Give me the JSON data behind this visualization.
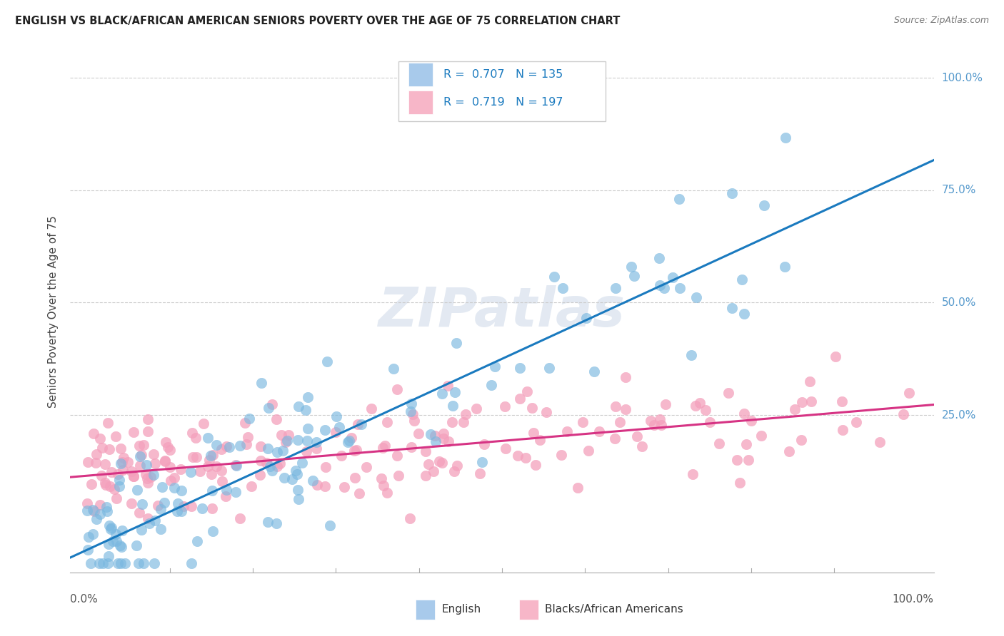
{
  "title": "ENGLISH VS BLACK/AFRICAN AMERICAN SENIORS POVERTY OVER THE AGE OF 75 CORRELATION CHART",
  "source": "Source: ZipAtlas.com",
  "ylabel": "Seniors Poverty Over the Age of 75",
  "english_R": 0.707,
  "english_N": 135,
  "black_R": 0.719,
  "black_N": 197,
  "english_color": "#a8caeb",
  "black_color": "#f7b6c8",
  "english_line_color": "#1a7abf",
  "black_line_color": "#d63384",
  "english_scatter_color": "#7ab8e0",
  "black_scatter_color": "#f4a0bc",
  "watermark_color": "#ccd8e8",
  "ytick_color": "#5599cc",
  "ytick_right_color": "#5599cc",
  "grid_color": "#cccccc",
  "title_color": "#222222",
  "source_color": "#777777",
  "legend_box_edge": "#cccccc",
  "legend_text_color": "#1a7abf",
  "axis_color": "#aaaaaa",
  "slope_eng": 0.85,
  "intercept_eng": -0.05,
  "slope_blk": 0.155,
  "intercept_blk": 0.115,
  "background_color": "#ffffff"
}
